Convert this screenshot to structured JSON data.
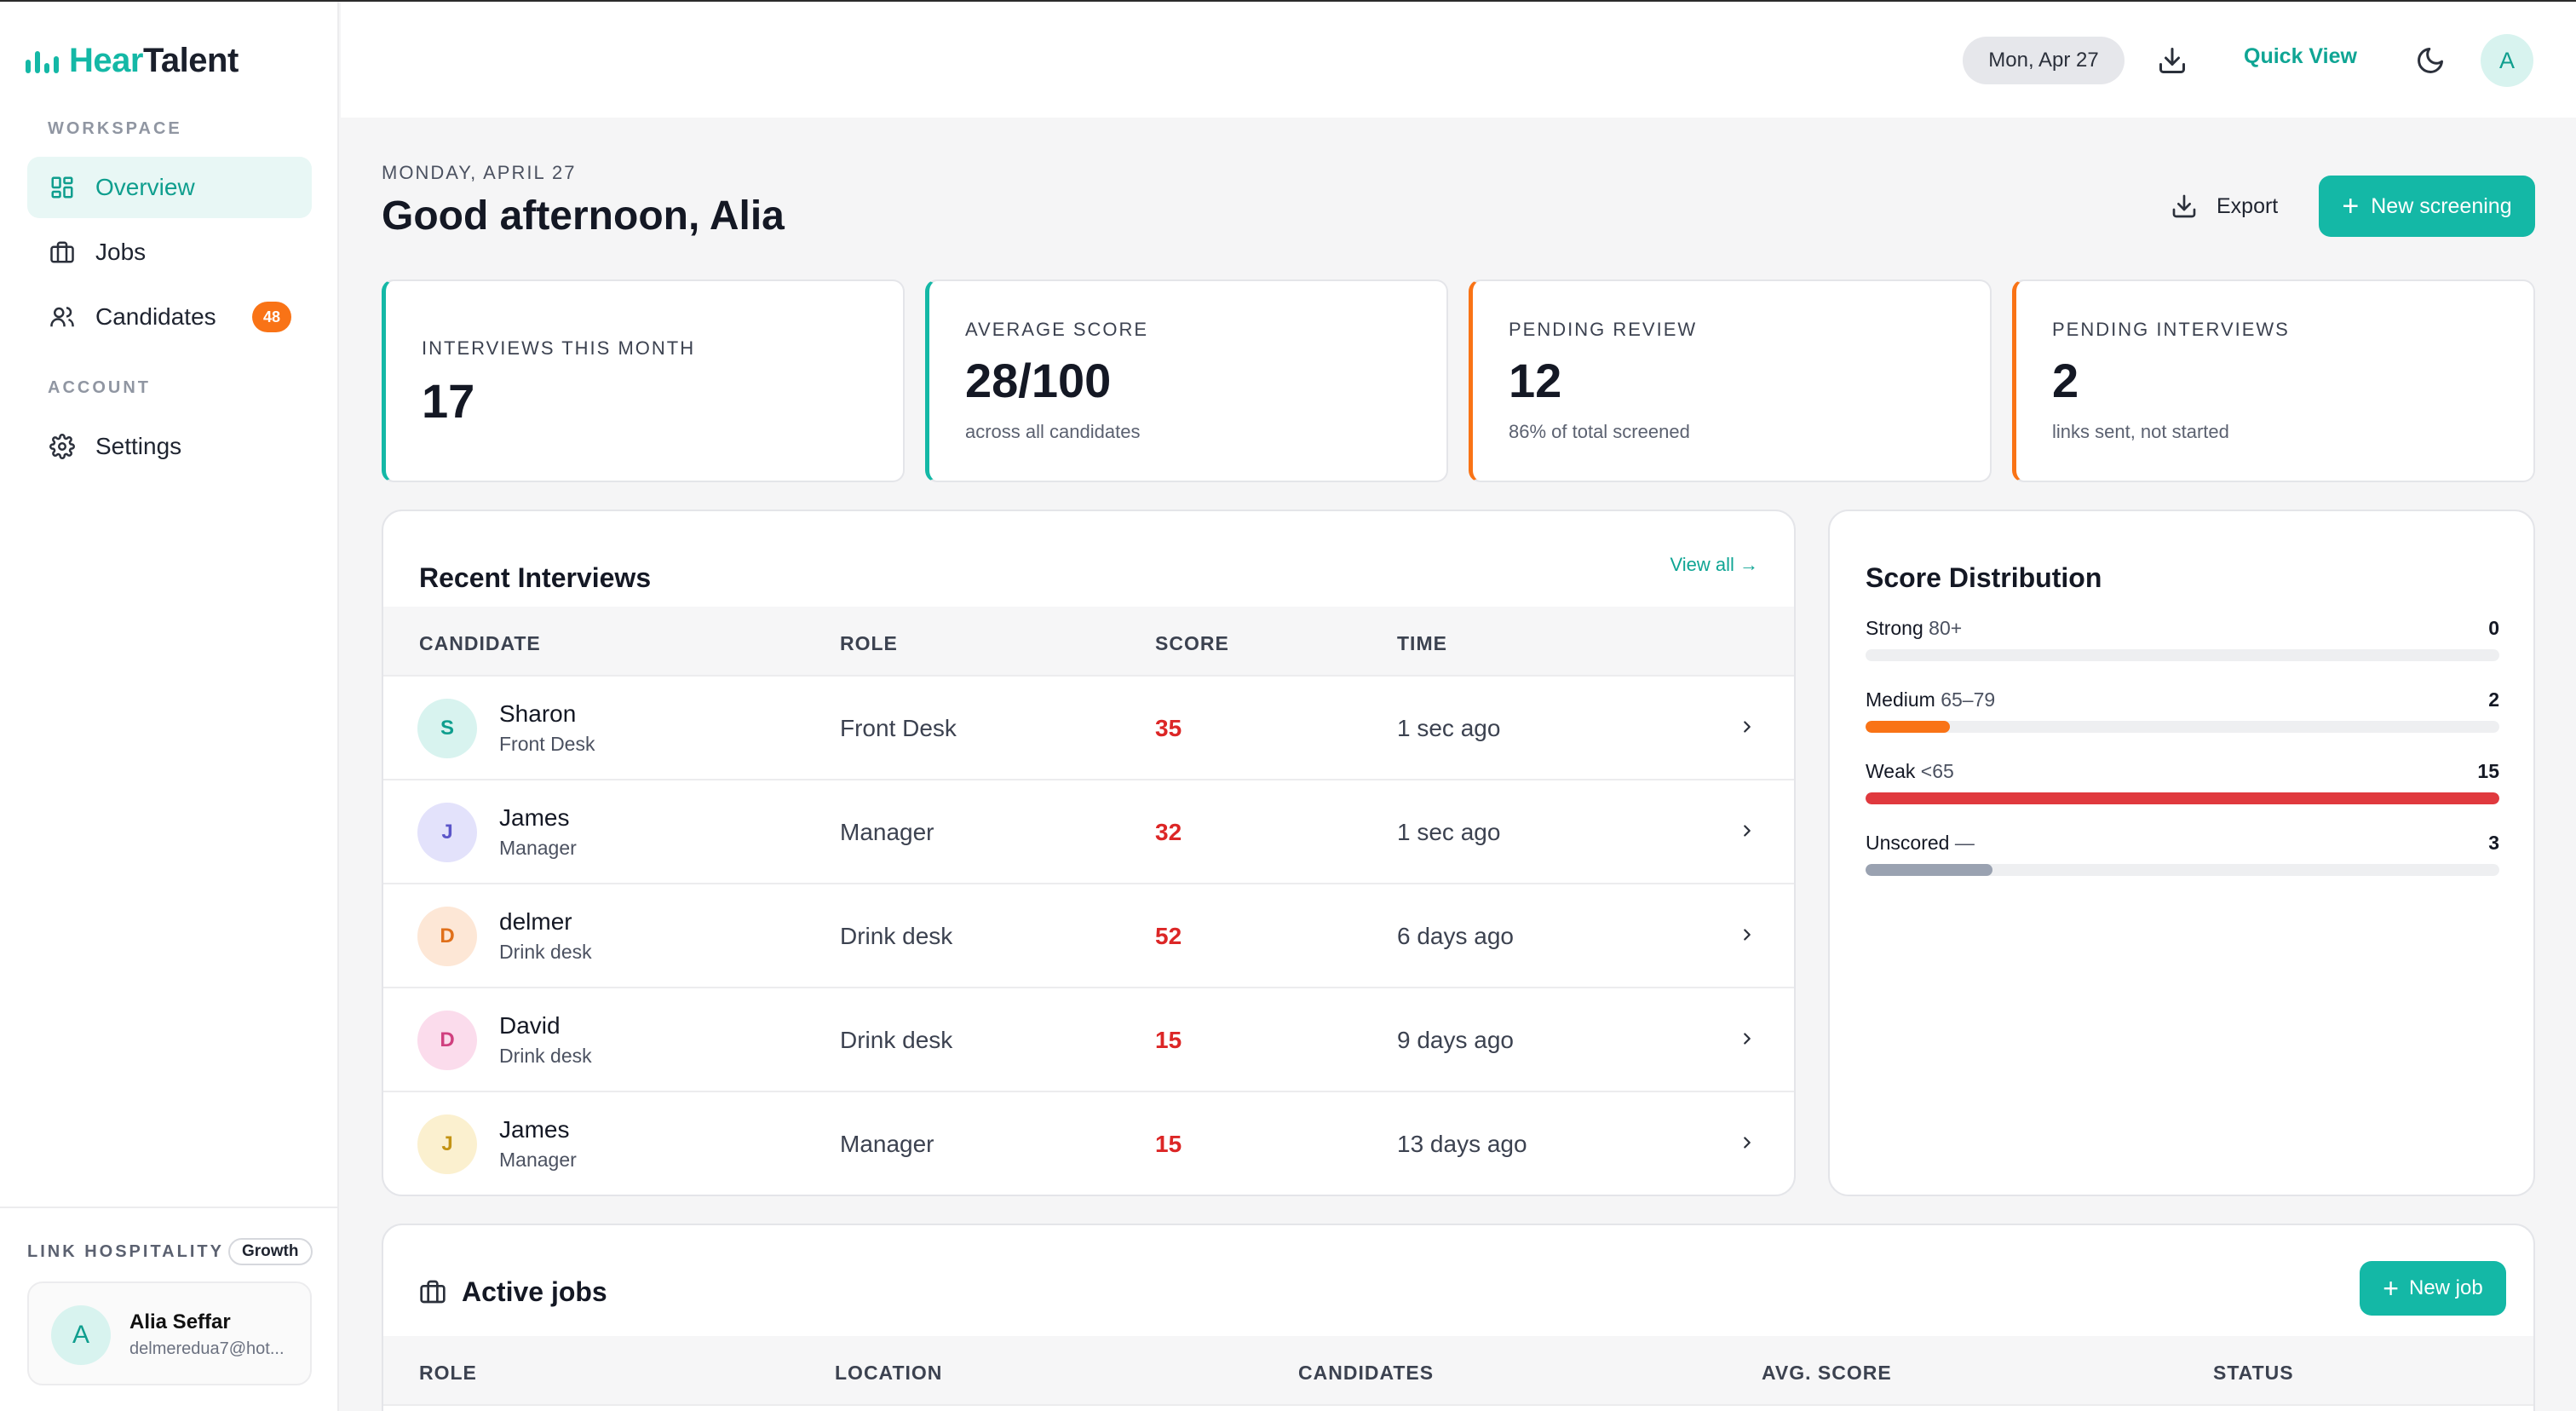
{
  "app": {
    "logo_part1": "Hear",
    "logo_part2": "Talent",
    "accent": "#14b8a6",
    "warning": "#f97316",
    "danger": "#dc2626"
  },
  "sidebar": {
    "workspace_label": "WORKSPACE",
    "account_label": "ACCOUNT",
    "items": [
      {
        "label": "Overview",
        "icon": "grid-icon",
        "active": true
      },
      {
        "label": "Jobs",
        "icon": "briefcase-icon"
      },
      {
        "label": "Candidates",
        "icon": "users-icon",
        "badge": "48"
      },
      {
        "label": "Settings",
        "icon": "gear-icon"
      }
    ],
    "org_name": "LINK HOSPITALITY",
    "plan": "Growth",
    "user": {
      "initial": "A",
      "name": "Alia Seffar",
      "email": "delmeredua7@hot..."
    }
  },
  "topbar": {
    "date": "Mon, Apr 27",
    "quick_view": "Quick View",
    "avatar_initial": "A"
  },
  "header": {
    "overline": "MONDAY, APRIL 27",
    "greeting": "Good afternoon, Alia",
    "export_label": "Export",
    "new_screening_label": "New screening"
  },
  "stats": [
    {
      "label": "INTERVIEWS THIS MONTH",
      "value": "17",
      "sub": ""
    },
    {
      "label": "AVERAGE SCORE",
      "value": "28/100",
      "sub": "across all candidates"
    },
    {
      "label": "PENDING REVIEW",
      "value": "12",
      "sub": "86% of total screened"
    },
    {
      "label": "PENDING INTERVIEWS",
      "value": "2",
      "sub": "links sent, not started"
    }
  ],
  "recent": {
    "title": "Recent Interviews",
    "view_all": "View all →",
    "columns": [
      "CANDIDATE",
      "ROLE",
      "SCORE",
      "TIME"
    ],
    "rows": [
      {
        "initial": "S",
        "name": "Sharon",
        "sub": "Front Desk",
        "role": "Front Desk",
        "score": "35",
        "time": "1 sec ago",
        "bg": "#d8f3ef",
        "fg": "#0f9e8e"
      },
      {
        "initial": "J",
        "name": "James",
        "sub": "Manager",
        "role": "Manager",
        "score": "32",
        "time": "1 sec ago",
        "bg": "#e3e2fb",
        "fg": "#5b55c9"
      },
      {
        "initial": "D",
        "name": "delmer",
        "sub": "Drink desk",
        "role": "Drink desk",
        "score": "52",
        "time": "6 days ago",
        "bg": "#fde7d6",
        "fg": "#e0701b"
      },
      {
        "initial": "D",
        "name": "David",
        "sub": "Drink desk",
        "role": "Drink desk",
        "score": "15",
        "time": "9 days ago",
        "bg": "#fbdcec",
        "fg": "#d0407f"
      },
      {
        "initial": "J",
        "name": "James",
        "sub": "Manager",
        "role": "Manager",
        "score": "15",
        "time": "13 days ago",
        "bg": "#fbf0cf",
        "fg": "#c39314"
      }
    ]
  },
  "distribution": {
    "title": "Score Distribution",
    "rows": [
      {
        "label": "Strong",
        "range": "80+",
        "count": "0",
        "fraction": 0.0,
        "color": "#14b8a6"
      },
      {
        "label": "Medium",
        "range": "65–79",
        "count": "2",
        "fraction": 0.133,
        "color": "#f97316"
      },
      {
        "label": "Weak",
        "range": "<65",
        "count": "15",
        "fraction": 1.0,
        "color": "#e0393e"
      },
      {
        "label": "Unscored",
        "range": "—",
        "count": "3",
        "fraction": 0.2,
        "color": "#9aa2b1"
      }
    ]
  },
  "jobs": {
    "title": "Active jobs",
    "new_job_label": "New job",
    "columns": [
      "ROLE",
      "LOCATION",
      "CANDIDATES",
      "AVG. SCORE",
      "STATUS"
    ]
  }
}
